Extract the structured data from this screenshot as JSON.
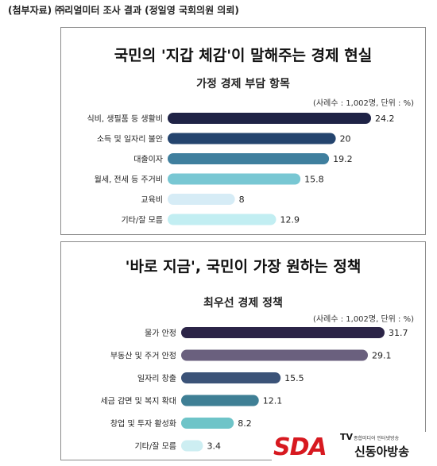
{
  "caption": "(첨부자료) ㈜리얼미터 조사 결과 (정일영 국회의원 의뢰)",
  "chart_data": [
    {
      "type": "bar",
      "orientation": "horizontal",
      "title": "국민의 '지갑 체감'이 말해주는 경제 현실",
      "subtitle": "가정 경제 부담 항목",
      "note": "(사례수 : 1,002명, 단위 : %)",
      "categories": [
        "식비, 생필품 등 생활비",
        "소득 및 일자리 불안",
        "대출이자",
        "월세, 전세 등 주거비",
        "교육비",
        "기타/잘 모름"
      ],
      "values": [
        24.2,
        20,
        19.2,
        15.8,
        8,
        12.9
      ],
      "value_labels": [
        "24.2",
        "20",
        "19.2",
        "15.8",
        "8",
        "12.9"
      ],
      "colors": [
        "#1f2346",
        "#24446e",
        "#3f7f9e",
        "#78c7d3",
        "#d6ecf6",
        "#c2eef2"
      ],
      "xlim": [
        0,
        24.2
      ]
    },
    {
      "type": "bar",
      "orientation": "horizontal",
      "title": "'바로 지금', 국민이 가장 원하는 정책",
      "subtitle": "최우선 경제 정책",
      "note": "(사례수 : 1,002명, 단위 : %)",
      "categories": [
        "물가 안정",
        "부동산 및 주거 안정",
        "일자리 창출",
        "세금 감면 및 복지 확대",
        "창업 및 투자 활성화",
        "기타/잘 모름"
      ],
      "values": [
        31.7,
        29.1,
        15.5,
        12.1,
        8.2,
        3.4
      ],
      "value_labels": [
        "31.7",
        "29.1",
        "15.5",
        "12.1",
        "8.2",
        "3.4"
      ],
      "colors": [
        "#2b2447",
        "#6a607e",
        "#3b5378",
        "#3f7f95",
        "#6ec4c8",
        "#cdeef2"
      ],
      "xlim": [
        0,
        31.7
      ]
    }
  ],
  "logo": {
    "brand": "SDA",
    "tv": "TV",
    "tagline": "종합미디어 인터넷방송",
    "name": "신동아방송"
  }
}
